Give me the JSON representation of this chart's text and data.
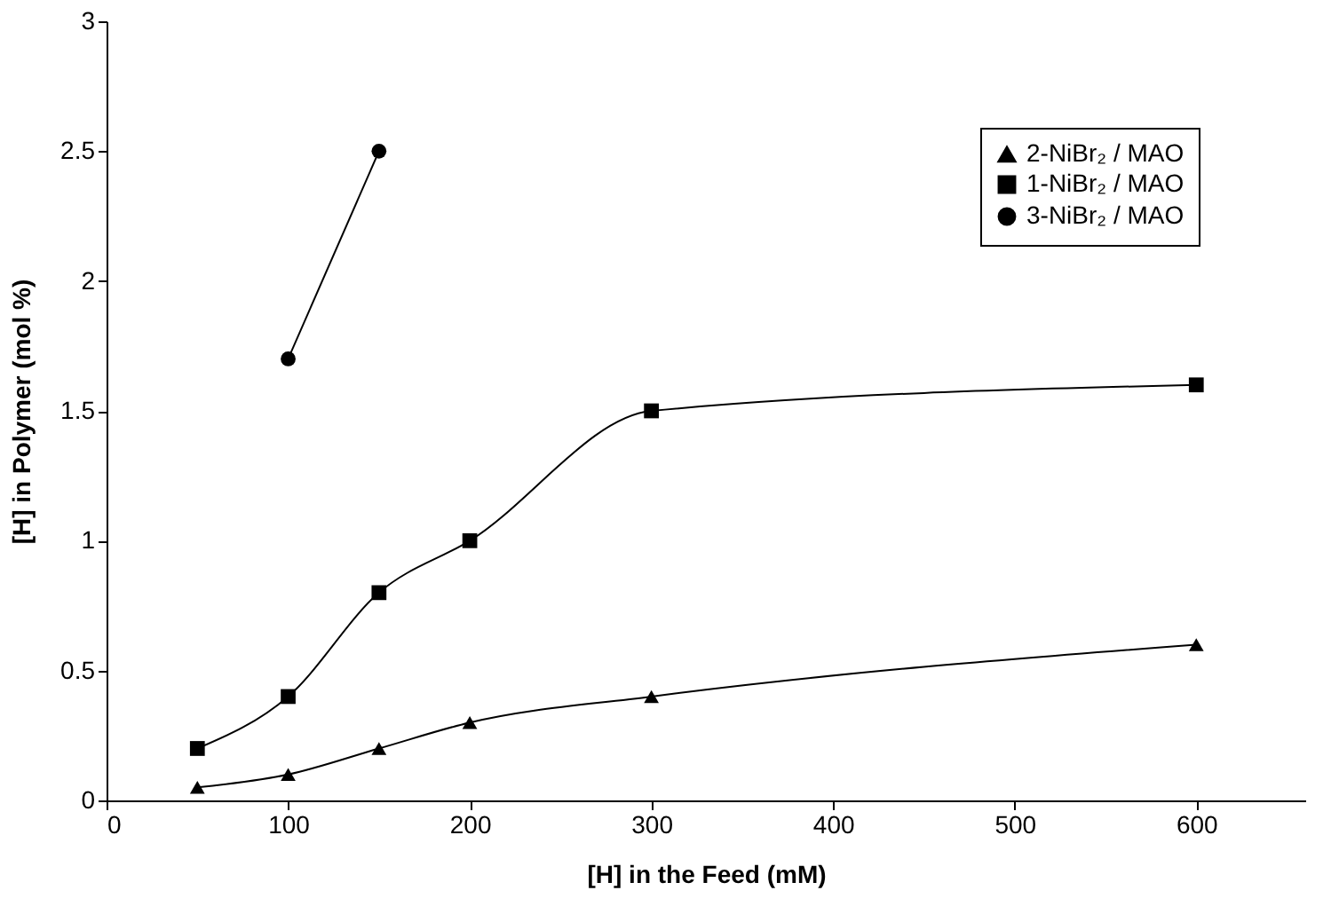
{
  "chart_data": {
    "type": "line",
    "xlabel": "[H] in the Feed (mM)",
    "ylabel": "[H] in Polymer (mol %)",
    "xlim": [
      0,
      660
    ],
    "xticks": [
      0,
      100,
      200,
      300,
      400,
      500,
      600
    ],
    "ylim": [
      0,
      3
    ],
    "yticks": [
      0,
      0.5,
      1,
      1.5,
      2,
      2.5,
      3
    ],
    "grid": false,
    "legend": "top right",
    "line_style": "solid",
    "series": [
      {
        "name": "2-NiBr₂ / MAO",
        "color": "#000000",
        "marker": "triangle",
        "x": [
          50,
          100,
          150,
          200,
          300,
          600
        ],
        "values": [
          0.05,
          0.1,
          0.2,
          0.3,
          0.4,
          0.6
        ]
      },
      {
        "name": "1-NiBr₂ / MAO",
        "color": "#000000",
        "marker": "square",
        "x": [
          50,
          100,
          150,
          200,
          300,
          600
        ],
        "values": [
          0.2,
          0.4,
          0.8,
          1.0,
          1.5,
          1.6
        ]
      },
      {
        "name": "3-NiBr₂ / MAO",
        "color": "#000000",
        "marker": "circle",
        "x": [
          100,
          150
        ],
        "values": [
          1.7,
          2.5
        ]
      }
    ]
  }
}
